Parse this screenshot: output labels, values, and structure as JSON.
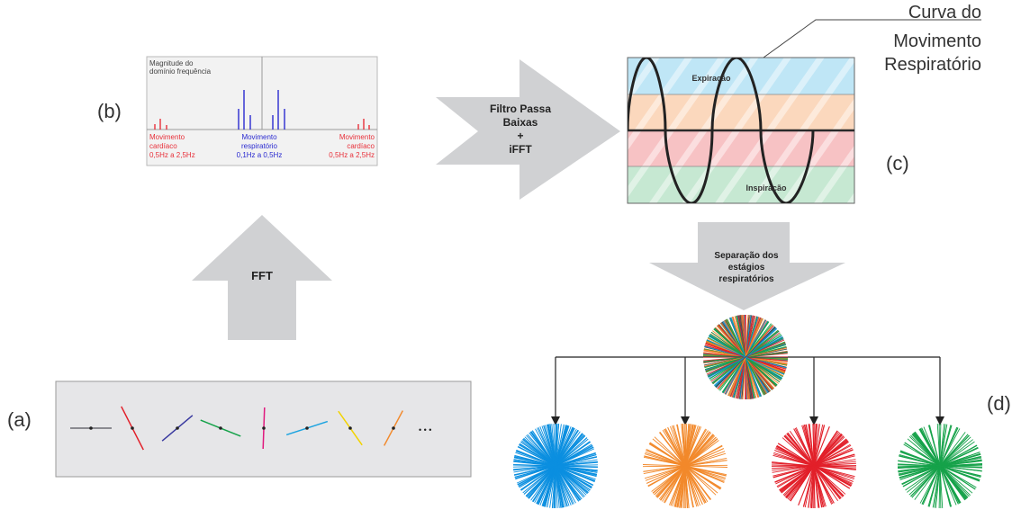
{
  "panel_labels": {
    "a": "(a)",
    "b": "(b)",
    "c": "(c)",
    "d": "(d)"
  },
  "spectrum": {
    "ylabel_line1": "Magnitude do",
    "ylabel_line2": "domínio frequência",
    "left_label": [
      "Movimento",
      "cardíaco",
      "0,5Hz a 2,5Hz"
    ],
    "center_label": [
      "Movimento",
      "respiratório",
      "0,1Hz a 0,5Hz"
    ],
    "right_label": [
      "Movimento",
      "cardíaco",
      "0,5Hz a 2,5Hz"
    ]
  },
  "arrows": {
    "fft": "FFT",
    "filter": [
      "Filtro Passa",
      "Baixas",
      "+",
      "iFFT"
    ],
    "separation": [
      "Separação dos",
      "estágios",
      "respiratórios"
    ]
  },
  "resp_curve": {
    "title": [
      "Curva do",
      "Movimento",
      "Respiratório"
    ],
    "band_top": "Expiração",
    "band_bottom": "Inspiração"
  },
  "ellipsis": "• • •",
  "colors": {
    "cardiac": "#e8303a",
    "respiratory": "#2a2ad0",
    "arrow_fill": "#d0d1d3",
    "band_blue": "#bfe6f6",
    "band_orange": "#fbd8bd",
    "band_red": "#f7c2c4",
    "band_green": "#c6e8d2",
    "stage_blue": "#0b8fe0",
    "stage_orange": "#f2892b",
    "stage_red": "#e2202a",
    "stage_green": "#16a24a"
  },
  "spokes": [
    {
      "color": "#6b6b73",
      "angle_deg": 0
    },
    {
      "color": "#e2202a",
      "angle_deg": 63
    },
    {
      "color": "#3a3aa0",
      "angle_deg": -40
    },
    {
      "color": "#16a24a",
      "angle_deg": 22
    },
    {
      "color": "#e0197d",
      "angle_deg": 92
    },
    {
      "color": "#1aa3e0",
      "angle_deg": -18
    },
    {
      "color": "#f2d300",
      "angle_deg": 55
    },
    {
      "color": "#f2892b",
      "angle_deg": -62
    }
  ]
}
